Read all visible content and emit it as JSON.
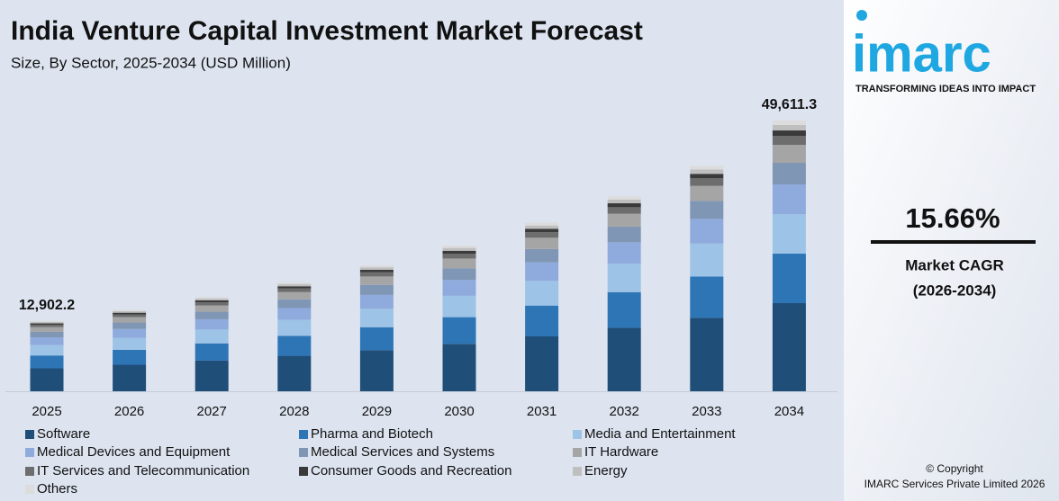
{
  "chart_data": {
    "type": "stacked-bar",
    "title": "India Venture Capital Investment Market Forecast",
    "subtitle": "Size, By Sector, 2025-2034 (USD Million)",
    "categories": [
      "2025",
      "2026",
      "2027",
      "2028",
      "2029",
      "2030",
      "2031",
      "2032",
      "2033",
      "2034"
    ],
    "series": [
      {
        "name": "Software",
        "color": "#1f4e79",
        "values": [
          4200,
          4859,
          5620,
          6497,
          7518,
          8694,
          10055,
          11630,
          13453,
          16150
        ]
      },
      {
        "name": "Pharma and Biotech",
        "color": "#2e75b6",
        "values": [
          2360,
          2731,
          3158,
          3651,
          4224,
          4885,
          5650,
          6535,
          7559,
          9065
        ]
      },
      {
        "name": "Media and Entertainment",
        "color": "#9dc3e6",
        "values": [
          1890,
          2187,
          2529,
          2924,
          3383,
          3912,
          4525,
          5233,
          6054,
          7250
        ]
      },
      {
        "name": "Medical Devices and Equipment",
        "color": "#8faadc",
        "values": [
          1410,
          1631,
          1887,
          2181,
          2524,
          2919,
          3376,
          3904,
          4516,
          5440
        ]
      },
      {
        "name": "Medical Services and Systems",
        "color": "#7f96b4",
        "values": [
          1030,
          1192,
          1378,
          1593,
          1844,
          2132,
          2466,
          2852,
          3299,
          3955
        ]
      },
      {
        "name": "IT Hardware",
        "color": "#a5a5a5",
        "values": [
          860,
          995,
          1151,
          1330,
          1539,
          1780,
          2059,
          2381,
          2755,
          3296
        ]
      },
      {
        "name": "IT Services and Telecommunication",
        "color": "#6d6d6d",
        "values": [
          430,
          498,
          575,
          665,
          770,
          890,
          1029,
          1191,
          1377,
          1648
        ]
      },
      {
        "name": "Consumer Goods and Recreation",
        "color": "#3a3a3a",
        "values": [
          260,
          301,
          348,
          402,
          465,
          538,
          622,
          720,
          833,
          990
        ]
      },
      {
        "name": "Energy",
        "color": "#bfbfbf",
        "values": [
          250,
          289,
          335,
          387,
          448,
          518,
          599,
          692,
          801,
          990
        ]
      },
      {
        "name": "Others",
        "color": "#dcdcdc",
        "values": [
          212,
          245,
          284,
          328,
          379,
          439,
          508,
          587,
          679,
          827
        ]
      }
    ],
    "totals": [
      {
        "category": "2025",
        "value": 12902.2,
        "label": "12,902.2"
      },
      {
        "category": "2034",
        "value": 49611.3,
        "label": "49,611.3"
      }
    ]
  },
  "sidebar": {
    "logo": "imarc",
    "tagline": "TRANSFORMING IDEAS INTO IMPACT",
    "cagr": "15.66%",
    "cagr_label": "Market CAGR",
    "cagr_period": "(2026-2034)",
    "copyright": "© Copyright",
    "company": "IMARC Services Private Limited 2026"
  }
}
